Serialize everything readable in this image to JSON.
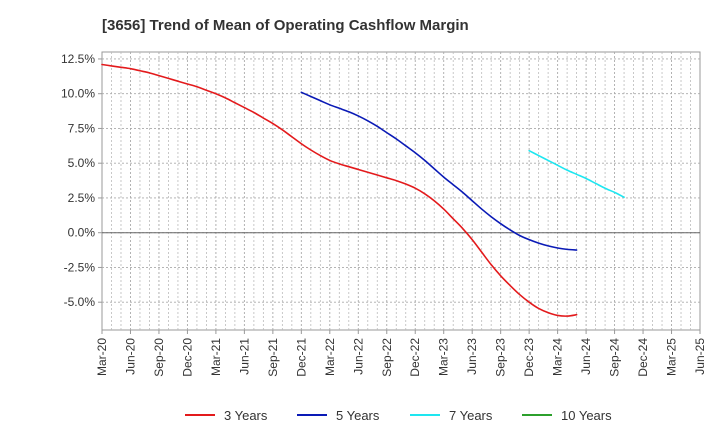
{
  "chart_data": {
    "type": "line",
    "title": "[3656]  Trend of Mean of Operating Cashflow Margin",
    "xlabel": "",
    "ylabel": "",
    "ylim": [
      -7.0,
      13.0
    ],
    "yticks": [
      12.5,
      10.0,
      7.5,
      5.0,
      2.5,
      0.0,
      -2.5,
      -5.0
    ],
    "ytick_labels": [
      "12.5%",
      "10.0%",
      "7.5%",
      "5.0%",
      "2.5%",
      "0.0%",
      "-2.5%",
      "-5.0%"
    ],
    "x_tick_labels": [
      "Mar-20",
      "Jun-20",
      "Sep-20",
      "Dec-20",
      "Mar-21",
      "Jun-21",
      "Sep-21",
      "Dec-21",
      "Mar-22",
      "Jun-22",
      "Sep-22",
      "Dec-22",
      "Mar-23",
      "Jun-23",
      "Sep-23",
      "Dec-23",
      "Mar-24",
      "Jun-24",
      "Sep-24",
      "Dec-24",
      "Mar-25",
      "Jun-25"
    ],
    "months_per_tick": 3,
    "grid": true,
    "legend_position": "bottom",
    "series": [
      {
        "name": "3 Years",
        "color": "#e31a1c",
        "start_month": 0,
        "values": [
          12.1,
          12.0,
          11.9,
          11.8,
          11.65,
          11.5,
          11.3,
          11.1,
          10.9,
          10.7,
          10.5,
          10.25,
          10.0,
          9.7,
          9.35,
          9.0,
          8.65,
          8.25,
          7.85,
          7.4,
          6.9,
          6.4,
          5.95,
          5.55,
          5.2,
          4.95,
          4.75,
          4.55,
          4.35,
          4.15,
          3.95,
          3.75,
          3.5,
          3.2,
          2.8,
          2.3,
          1.7,
          1.0,
          0.3,
          -0.5,
          -1.4,
          -2.3,
          -3.1,
          -3.8,
          -4.45,
          -5.0,
          -5.45,
          -5.75,
          -5.95,
          -6.0,
          -5.9
        ]
      },
      {
        "name": "5 Years",
        "color": "#0a1ab6",
        "start_month": 21,
        "values": [
          10.1,
          9.8,
          9.5,
          9.2,
          8.95,
          8.7,
          8.4,
          8.05,
          7.65,
          7.2,
          6.75,
          6.25,
          5.75,
          5.2,
          4.6,
          4.0,
          3.45,
          2.9,
          2.3,
          1.7,
          1.15,
          0.65,
          0.2,
          -0.2,
          -0.5,
          -0.75,
          -0.95,
          -1.1,
          -1.2,
          -1.25
        ]
      },
      {
        "name": "7 Years",
        "color": "#1ee6f0",
        "start_month": 45,
        "values": [
          5.9,
          5.55,
          5.2,
          4.85,
          4.5,
          4.2,
          3.9,
          3.55,
          3.2,
          2.9,
          2.55
        ]
      },
      {
        "name": "10 Years",
        "color": "#2ca02c",
        "start_month": 0,
        "values": []
      }
    ]
  }
}
